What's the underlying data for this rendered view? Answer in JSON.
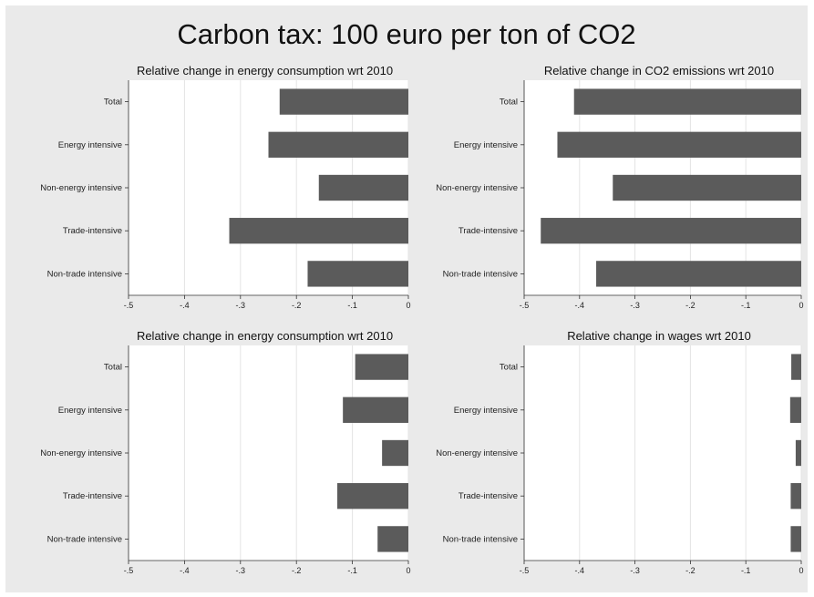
{
  "title": "Carbon tax: 100 euro per ton of CO2",
  "chart_data": [
    {
      "type": "bar",
      "orientation": "horizontal",
      "title": "Relative change in energy consumption wrt 2010",
      "categories": [
        "Total",
        "Energy intensive",
        "Non-energy intensive",
        "Trade-intensive",
        "Non-trade intensive"
      ],
      "values": [
        -0.23,
        -0.25,
        -0.16,
        -0.32,
        -0.18
      ],
      "xlim": [
        -0.5,
        0
      ],
      "xticks": [
        -0.5,
        -0.4,
        -0.3,
        -0.2,
        -0.1,
        0
      ],
      "xtick_labels": [
        "-.5",
        "-.4",
        "-.3",
        "-.2",
        "-.1",
        "0"
      ],
      "grid": true,
      "color": "#5b5b5b"
    },
    {
      "type": "bar",
      "orientation": "horizontal",
      "title": "Relative change in CO2 emissions wrt 2010",
      "categories": [
        "Total",
        "Energy intensive",
        "Non-energy intensive",
        "Trade-intensive",
        "Non-trade intensive"
      ],
      "values": [
        -0.41,
        -0.44,
        -0.34,
        -0.47,
        -0.37
      ],
      "xlim": [
        -0.5,
        0
      ],
      "xticks": [
        -0.5,
        -0.4,
        -0.3,
        -0.2,
        -0.1,
        0
      ],
      "xtick_labels": [
        "-.5",
        "-.4",
        "-.3",
        "-.2",
        "-.1",
        "0"
      ],
      "grid": true,
      "color": "#5b5b5b"
    },
    {
      "type": "bar",
      "orientation": "horizontal",
      "title": "Relative change in energy consumption wrt 2010",
      "categories": [
        "Total",
        "Energy intensive",
        "Non-energy intensive",
        "Trade-intensive",
        "Non-trade intensive"
      ],
      "values": [
        -0.095,
        -0.117,
        -0.047,
        -0.127,
        -0.055
      ],
      "xlim": [
        -0.5,
        0
      ],
      "xticks": [
        -0.5,
        -0.4,
        -0.3,
        -0.2,
        -0.1,
        0
      ],
      "xtick_labels": [
        "-.5",
        "-.4",
        "-.3",
        "-.2",
        "-.1",
        "0"
      ],
      "grid": true,
      "color": "#5b5b5b"
    },
    {
      "type": "bar",
      "orientation": "horizontal",
      "title": "Relative change in wages wrt 2010",
      "categories": [
        "Total",
        "Energy intensive",
        "Non-energy intensive",
        "Trade-intensive",
        "Non-trade intensive"
      ],
      "values": [
        -0.018,
        -0.02,
        -0.01,
        -0.019,
        -0.019
      ],
      "xlim": [
        -0.5,
        0
      ],
      "xticks": [
        -0.5,
        -0.4,
        -0.3,
        -0.2,
        -0.1,
        0
      ],
      "xtick_labels": [
        "-.5",
        "-.4",
        "-.3",
        "-.2",
        "-.1",
        "0"
      ],
      "grid": true,
      "color": "#5b5b5b"
    }
  ]
}
